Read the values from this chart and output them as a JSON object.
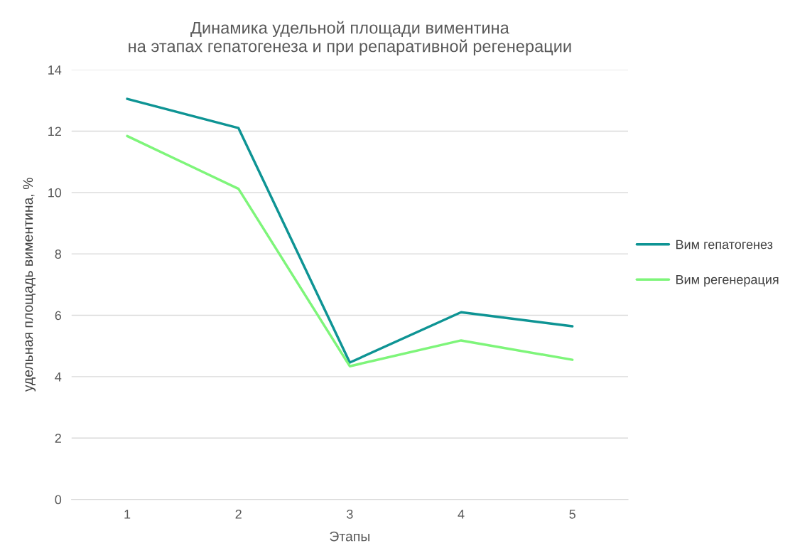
{
  "chart_data": {
    "type": "line",
    "title": "Динамика удельной площади виментина\nна этапах гепатогенеза и при репаративной регенерации",
    "xlabel": "Этапы",
    "ylabel": "удельная площадь виментина, %",
    "categories": [
      "1",
      "2",
      "3",
      "4",
      "5"
    ],
    "series": [
      {
        "name": "Вим гепатогенез",
        "color": "#0e9494",
        "values": [
          13.05,
          12.1,
          4.46,
          6.1,
          5.64
        ]
      },
      {
        "name": "Вим регенерация",
        "color": "#7ef57a",
        "values": [
          11.84,
          10.12,
          4.34,
          5.18,
          4.55
        ]
      }
    ],
    "ylim": [
      0,
      14
    ],
    "yticks": [
      0,
      2,
      4,
      6,
      8,
      10,
      12,
      14
    ],
    "grid": "y",
    "legend": "right",
    "marker": "none",
    "line_style": "solid"
  }
}
